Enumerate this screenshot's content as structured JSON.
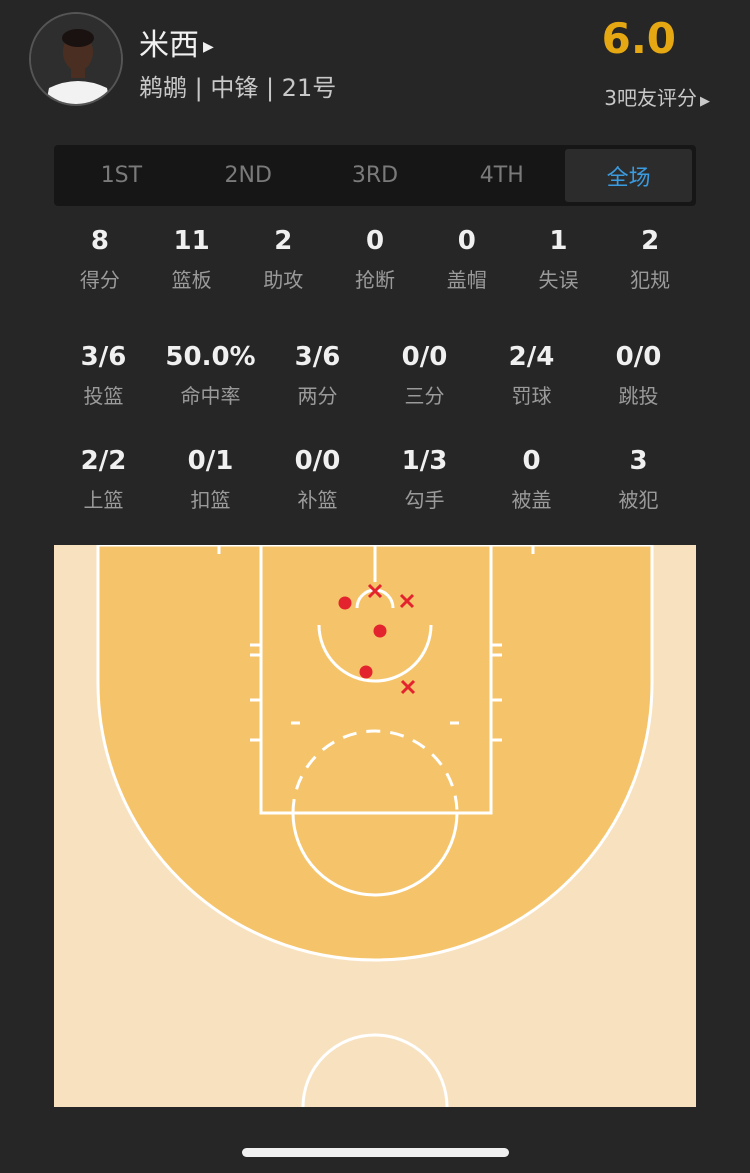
{
  "player": {
    "name": "米西",
    "info": "鹈鹕 | 中锋 | 21号",
    "rating": "6.0",
    "rating_count": "3吧友评分"
  },
  "tabs": [
    {
      "label": "1ST"
    },
    {
      "label": "2ND"
    },
    {
      "label": "3RD"
    },
    {
      "label": "4TH"
    },
    {
      "label": "全场",
      "active": true
    }
  ],
  "basic": [
    {
      "v": "8",
      "l": "得分"
    },
    {
      "v": "11",
      "l": "篮板"
    },
    {
      "v": "2",
      "l": "助攻"
    },
    {
      "v": "0",
      "l": "抢断"
    },
    {
      "v": "0",
      "l": "盖帽"
    },
    {
      "v": "1",
      "l": "失误"
    },
    {
      "v": "2",
      "l": "犯规"
    }
  ],
  "shooting1": [
    {
      "v": "3/6",
      "l": "投篮"
    },
    {
      "v": "50.0%",
      "l": "命中率"
    },
    {
      "v": "3/6",
      "l": "两分"
    },
    {
      "v": "0/0",
      "l": "三分"
    },
    {
      "v": "2/4",
      "l": "罚球"
    },
    {
      "v": "0/0",
      "l": "跳投"
    }
  ],
  "shooting2": [
    {
      "v": "2/2",
      "l": "上篮"
    },
    {
      "v": "0/1",
      "l": "扣篮"
    },
    {
      "v": "0/0",
      "l": "补篮"
    },
    {
      "v": "1/3",
      "l": "勾手"
    },
    {
      "v": "0",
      "l": "被盖"
    },
    {
      "v": "3",
      "l": "被犯"
    }
  ],
  "shot_chart": {
    "shots": [
      {
        "result": "made"
      },
      {
        "result": "made"
      },
      {
        "result": "made"
      },
      {
        "result": "missed"
      },
      {
        "result": "missed"
      },
      {
        "result": "missed"
      }
    ],
    "colors": {
      "made": "#e3232d",
      "missed": "#e3232d",
      "paint": "#f5c46a",
      "outside": "#f8e1bf",
      "accent": "#3b9be0",
      "rating": "#e5a812"
    }
  }
}
